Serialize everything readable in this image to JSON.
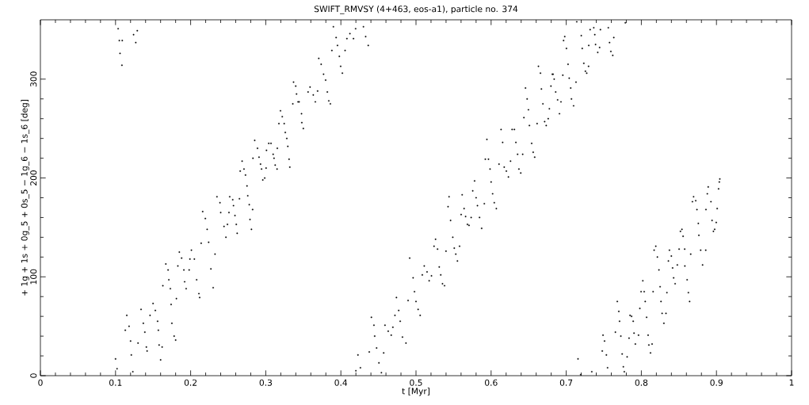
{
  "chart_data": {
    "type": "scatter",
    "title": "SWIFT_RMVSY (4+463, eos-a1), particle no. 374",
    "xlabel": "t [Myr]",
    "ylabel": "+ 1g + 1s + 0g_5 + 0s_5 − 1g_6 − 1s_6 [deg]",
    "xlim": [
      0,
      1
    ],
    "ylim": [
      0,
      360
    ],
    "xticks": [
      0,
      0.1,
      0.2,
      0.3,
      0.4,
      0.5,
      0.6,
      0.7,
      0.8,
      0.9,
      1
    ],
    "yticks": [
      0,
      100,
      200,
      300
    ],
    "color": "#000000",
    "x": [
      0.1035,
      0.105,
      0.109,
      0.106,
      0.1085,
      0.124,
      0.129,
      0.127,
      0.1,
      0.102,
      0.123,
      0.115,
      0.113,
      0.118,
      0.12,
      0.121,
      0.134,
      0.13,
      0.137,
      0.139,
      0.141,
      0.142,
      0.146,
      0.15,
      0.153,
      0.156,
      0.157,
      0.158,
      0.16,
      0.162,
      0.163,
      0.167,
      0.17,
      0.171,
      0.173,
      0.174,
      0.175,
      0.178,
      0.18,
      0.181,
      0.183,
      0.185,
      0.188,
      0.191,
      0.192,
      0.194,
      0.198,
      0.199,
      0.201,
      0.205,
      0.208,
      0.211,
      0.212,
      0.214,
      0.216,
      0.2196,
      0.222,
      0.224,
      0.227,
      0.23,
      0.2325,
      0.235,
      0.239,
      0.24,
      0.2444,
      0.247,
      0.249,
      0.251,
      0.252,
      0.256,
      0.257,
      0.259,
      0.2608,
      0.262,
      0.265,
      0.266,
      0.2685,
      0.271,
      0.273,
      0.275,
      0.276,
      0.278,
      0.279,
      0.281,
      0.2825,
      0.283,
      0.2853,
      0.289,
      0.291,
      0.293,
      0.2944,
      0.296,
      0.2986,
      0.3004,
      0.301,
      0.304,
      0.307,
      0.3098,
      0.311,
      0.3126,
      0.315,
      0.3154,
      0.3175,
      0.3196,
      0.322,
      0.3245,
      0.326,
      0.328,
      0.3294,
      0.331,
      0.332,
      0.336,
      0.337,
      0.3399,
      0.341,
      0.343,
      0.3444,
      0.3476,
      0.348,
      0.35,
      0.3563,
      0.359,
      0.3633,
      0.366,
      0.369,
      0.3706,
      0.3738,
      0.377,
      0.3797,
      0.382,
      0.3839,
      0.386,
      0.388,
      0.39,
      0.3937,
      0.3955,
      0.398,
      0.3997,
      0.402,
      0.4056,
      0.408,
      0.412,
      0.4168,
      0.4196,
      0.43,
      0.433,
      0.4364,
      0.42,
      0.4227,
      0.426,
      0.4378,
      0.4406,
      0.444,
      0.445,
      0.4476,
      0.4507,
      0.454,
      0.457,
      0.4587,
      0.463,
      0.467,
      0.4692,
      0.472,
      0.474,
      0.477,
      0.479,
      0.482,
      0.4867,
      0.4895,
      0.4916,
      0.4962,
      0.498,
      0.5,
      0.5028,
      0.5056,
      0.5084,
      0.511,
      0.5147,
      0.5175,
      0.5206,
      0.524,
      0.526,
      0.5287,
      0.531,
      0.533,
      0.5353,
      0.538,
      0.5399,
      0.5427,
      0.544,
      0.546,
      0.549,
      0.551,
      0.553,
      0.5552,
      0.558,
      0.5601,
      0.5615,
      0.564,
      0.566,
      0.5685,
      0.5706,
      0.5734,
      0.5755,
      0.578,
      0.58,
      0.5818,
      0.5846,
      0.5874,
      0.591,
      0.5923,
      0.5944,
      0.5965,
      0.5986,
      0.6,
      0.602,
      0.6042,
      0.607,
      0.6105,
      0.6133,
      0.6154,
      0.6175,
      0.6203,
      0.623,
      0.6259,
      0.628,
      0.631,
      0.633,
      0.6353,
      0.637,
      0.6395,
      0.642,
      0.6437,
      0.6458,
      0.648,
      0.6497,
      0.651,
      0.654,
      0.656,
      0.658,
      0.6612,
      0.663,
      0.6657,
      0.667,
      0.669,
      0.6713,
      0.6734,
      0.676,
      0.6776,
      0.6797,
      0.6815,
      0.6825,
      0.684,
      0.686,
      0.6885,
      0.691,
      0.693,
      0.6955,
      0.6965,
      0.698,
      0.7003,
      0.7024,
      0.704,
      0.706,
      0.707,
      0.7098,
      0.713,
      0.714,
      0.72,
      0.7213,
      0.7234,
      0.7255,
      0.7273,
      0.7297,
      0.73,
      0.7318,
      0.7367,
      0.738,
      0.739,
      0.742,
      0.7444,
      0.7455,
      0.756,
      0.7577,
      0.7594,
      0.762,
      0.7633,
      0.7787,
      0.7157,
      0.7192,
      0.734,
      0.748,
      0.749,
      0.751,
      0.7535,
      0.755,
      0.7654,
      0.768,
      0.77,
      0.771,
      0.7727,
      0.7745,
      0.776,
      0.7773,
      0.7811,
      0.7836,
      0.785,
      0.787,
      0.7892,
      0.7903,
      0.792,
      0.7962,
      0.798,
      0.7997,
      0.802,
      0.8038,
      0.8052,
      0.807,
      0.809,
      0.81,
      0.8122,
      0.8143,
      0.8157,
      0.817,
      0.8192,
      0.8213,
      0.8234,
      0.825,
      0.8262,
      0.8276,
      0.83,
      0.8328,
      0.834,
      0.836,
      0.8374,
      0.84,
      0.8416,
      0.843,
      0.845,
      0.8479,
      0.8503,
      0.852,
      0.854,
      0.8556,
      0.8577,
      0.858,
      0.861,
      0.8626,
      0.8643,
      0.8657,
      0.868,
      0.8696,
      0.8724,
      0.874,
      0.8759,
      0.8766,
      0.879,
      0.8815,
      0.8857,
      0.886,
      0.8878,
      0.889,
      0.8927,
      0.8941,
      0.896,
      0.8976,
      0.8997,
      0.901,
      0.9028,
      0.9038,
      0.9045
    ],
    "values": [
      351,
      339,
      339,
      326,
      314,
      345,
      349,
      337,
      17,
      7,
      4,
      61,
      46,
      50,
      35,
      21,
      67,
      33,
      53,
      44,
      29,
      25,
      61,
      73,
      66,
      55,
      46,
      31,
      16,
      29,
      91,
      113,
      107,
      97,
      88,
      72,
      53,
      40,
      36,
      78,
      111,
      125,
      119,
      107,
      95,
      88,
      107,
      118,
      127,
      118,
      97,
      83,
      79,
      134,
      166,
      159,
      148,
      135,
      108,
      89,
      123,
      181,
      175,
      165,
      151,
      140,
      153,
      165,
      181,
      178,
      172,
      162,
      153,
      144,
      179,
      207,
      217,
      209,
      203,
      192,
      182,
      173,
      158,
      148,
      168,
      220,
      238,
      230,
      221,
      214,
      209,
      198,
      200,
      210,
      228,
      235,
      235,
      224,
      220,
      213,
      209,
      230,
      255,
      268,
      262,
      255,
      246,
      240,
      232,
      219,
      211,
      275,
      297,
      293,
      285,
      277,
      277,
      265,
      256,
      250,
      287,
      292,
      284,
      277,
      288,
      321,
      315,
      305,
      299,
      287,
      278,
      275,
      329,
      353,
      342,
      334,
      323,
      313,
      306,
      329,
      341,
      346,
      341,
      351,
      353,
      343,
      334,
      5,
      21,
      8,
      24,
      59,
      51,
      40,
      28,
      13,
      3,
      23,
      51,
      45,
      41,
      49,
      61,
      79,
      66,
      55,
      39,
      33,
      76,
      119,
      99,
      85,
      75,
      67,
      61,
      102,
      111,
      105,
      96,
      101,
      131,
      138,
      128,
      110,
      102,
      93,
      91,
      126,
      171,
      181,
      157,
      140,
      129,
      123,
      116,
      131,
      163,
      183,
      169,
      161,
      153,
      152,
      160,
      187,
      197,
      180,
      172,
      160,
      149,
      174,
      219,
      239,
      219,
      209,
      196,
      184,
      175,
      169,
      214,
      249,
      236,
      211,
      207,
      201,
      217,
      249,
      249,
      236,
      224,
      209,
      205,
      224,
      261,
      291,
      280,
      269,
      253,
      235,
      226,
      221,
      255,
      313,
      306,
      290,
      275,
      257,
      253,
      260,
      270,
      293,
      305,
      305,
      300,
      287,
      279,
      265,
      277,
      304,
      339,
      343,
      331,
      315,
      301,
      291,
      280,
      273,
      297,
      358,
      344,
      331,
      316,
      308,
      306,
      313,
      334,
      350,
      352,
      345,
      335,
      327,
      332,
      350,
      352,
      337,
      328,
      324,
      342,
      357,
      17,
      1,
      4,
      25,
      41,
      35,
      21,
      8,
      44,
      75,
      65,
      55,
      40,
      22,
      9,
      4,
      19,
      38,
      61,
      60,
      55,
      43,
      32,
      41,
      68,
      85,
      96,
      85,
      75,
      59,
      41,
      31,
      23,
      32,
      85,
      127,
      131,
      120,
      107,
      90,
      75,
      63,
      53,
      63,
      84,
      116,
      127,
      121,
      109,
      99,
      93,
      112,
      128,
      146,
      148,
      141,
      128,
      111,
      97,
      84,
      75,
      123,
      176,
      181,
      177,
      168,
      154,
      142,
      127,
      112,
      127,
      168,
      184,
      191,
      176,
      157,
      146,
      148,
      155,
      169,
      189,
      196,
      199
    ]
  }
}
